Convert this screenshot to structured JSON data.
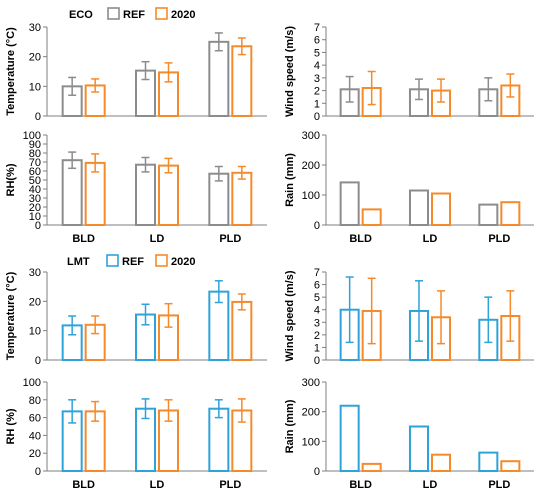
{
  "colors": {
    "eco_ref": "#8c8c8c",
    "lmt_ref": "#2ea3d9",
    "y2020": "#f58a2a",
    "axis": "#7f7f7f"
  },
  "groups": [
    {
      "site": "ECO",
      "legend": {
        "ref": "REF",
        "future": "2020"
      }
    },
    {
      "site": "LMT",
      "legend": {
        "ref": "REF",
        "future": "2020"
      }
    }
  ],
  "chart_data": [
    {
      "id": "eco-temp",
      "type": "bar",
      "site": "ECO",
      "ylabel": "Temperature (°C)",
      "ylim": [
        0,
        30
      ],
      "yticks": [
        0,
        10,
        20,
        30
      ],
      "categories": [
        "BLD",
        "LD",
        "PLD"
      ],
      "show_categories": false,
      "error_bars": true,
      "series": [
        {
          "name": "REF",
          "values": [
            10,
            15.3,
            25
          ],
          "err": [
            3,
            3,
            3
          ]
        },
        {
          "name": "2020",
          "values": [
            10.3,
            14.7,
            23.5
          ],
          "err": [
            2.2,
            3.2,
            2.8
          ]
        }
      ]
    },
    {
      "id": "eco-wind",
      "type": "bar",
      "site": "ECO",
      "ylabel": "Wind speed (m/s)",
      "ylim": [
        0,
        7
      ],
      "yticks": [
        0,
        1,
        2,
        3,
        4,
        5,
        6,
        7
      ],
      "categories": [
        "BLD",
        "LD",
        "PLD"
      ],
      "show_categories": false,
      "error_bars": true,
      "series": [
        {
          "name": "REF",
          "values": [
            2.1,
            2.1,
            2.1
          ],
          "err": [
            1.0,
            0.8,
            0.9
          ]
        },
        {
          "name": "2020",
          "values": [
            2.2,
            2.0,
            2.4
          ],
          "err": [
            1.3,
            0.9,
            0.9
          ]
        }
      ]
    },
    {
      "id": "eco-rh",
      "type": "bar",
      "site": "ECO",
      "ylabel": "RH(%)",
      "ylim": [
        0,
        100
      ],
      "yticks": [
        0,
        10,
        20,
        30,
        40,
        50,
        60,
        70,
        80,
        90,
        100
      ],
      "categories": [
        "BLD",
        "LD",
        "PLD"
      ],
      "show_categories": true,
      "error_bars": true,
      "series": [
        {
          "name": "REF",
          "values": [
            72,
            67,
            57
          ],
          "err": [
            9,
            8,
            8
          ]
        },
        {
          "name": "2020",
          "values": [
            69,
            66,
            58
          ],
          "err": [
            10,
            8,
            7
          ]
        }
      ]
    },
    {
      "id": "eco-rain",
      "type": "bar",
      "site": "ECO",
      "ylabel": "Rain (mm)",
      "ylim": [
        0,
        300
      ],
      "yticks": [
        0,
        100,
        200,
        300
      ],
      "categories": [
        "BLD",
        "LD",
        "PLD"
      ],
      "show_categories": true,
      "error_bars": false,
      "series": [
        {
          "name": "REF",
          "values": [
            142,
            115,
            68
          ]
        },
        {
          "name": "2020",
          "values": [
            52,
            105,
            76
          ]
        }
      ]
    },
    {
      "id": "lmt-temp",
      "type": "bar",
      "site": "LMT",
      "ylabel": "Temperature (°C)",
      "ylim": [
        0,
        30
      ],
      "yticks": [
        0,
        10,
        20,
        30
      ],
      "categories": [
        "BLD",
        "LD",
        "PLD"
      ],
      "show_categories": false,
      "error_bars": true,
      "series": [
        {
          "name": "REF",
          "values": [
            11.8,
            15.5,
            23.3
          ],
          "err": [
            3.2,
            3.5,
            3.7
          ]
        },
        {
          "name": "2020",
          "values": [
            12,
            15.2,
            19.8
          ],
          "err": [
            3,
            4,
            2.7
          ]
        }
      ]
    },
    {
      "id": "lmt-wind",
      "type": "bar",
      "site": "LMT",
      "ylabel": "Wind speed (m/s)",
      "ylim": [
        0,
        7
      ],
      "yticks": [
        0,
        1,
        2,
        3,
        4,
        5,
        6,
        7
      ],
      "categories": [
        "BLD",
        "LD",
        "PLD"
      ],
      "show_categories": false,
      "error_bars": true,
      "series": [
        {
          "name": "REF",
          "values": [
            4.0,
            3.9,
            3.2
          ],
          "err": [
            2.6,
            2.4,
            1.8
          ]
        },
        {
          "name": "2020",
          "values": [
            3.9,
            3.4,
            3.5
          ],
          "err": [
            2.6,
            2.1,
            2.0
          ]
        }
      ]
    },
    {
      "id": "lmt-rh",
      "type": "bar",
      "site": "LMT",
      "ylabel": "RH (%)",
      "ylim": [
        0,
        100
      ],
      "yticks": [
        0,
        20,
        40,
        60,
        80,
        100
      ],
      "categories": [
        "BLD",
        "LD",
        "PLD"
      ],
      "show_categories": true,
      "error_bars": true,
      "series": [
        {
          "name": "REF",
          "values": [
            67,
            70,
            70
          ],
          "err": [
            13,
            11,
            10
          ]
        },
        {
          "name": "2020",
          "values": [
            67,
            68,
            68
          ],
          "err": [
            11,
            12,
            13
          ]
        }
      ]
    },
    {
      "id": "lmt-rain",
      "type": "bar",
      "site": "LMT",
      "ylabel": "Rain (mm)",
      "ylim": [
        0,
        300
      ],
      "yticks": [
        0,
        100,
        200,
        300
      ],
      "categories": [
        "BLD",
        "LD",
        "PLD"
      ],
      "show_categories": true,
      "error_bars": false,
      "series": [
        {
          "name": "REF",
          "values": [
            220,
            150,
            62
          ]
        },
        {
          "name": "2020",
          "values": [
            24,
            55,
            33
          ]
        }
      ]
    }
  ]
}
